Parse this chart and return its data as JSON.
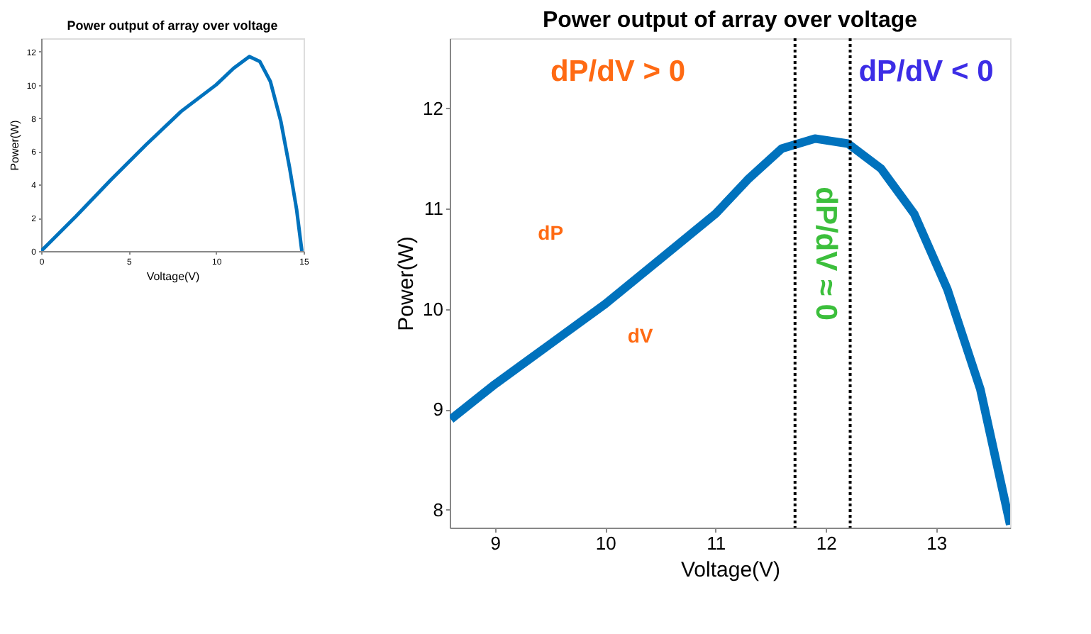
{
  "chart_data": [
    {
      "type": "line",
      "title": "Power output of array over voltage",
      "xlabel": "Voltage(V)",
      "ylabel": "Power(W)",
      "x": [
        0,
        2,
        4,
        6,
        8,
        10,
        11,
        11.9,
        12.5,
        13.1,
        13.7,
        14.2,
        14.6,
        14.9
      ],
      "series": [
        {
          "color": "#0072bd",
          "values": [
            0,
            2.1,
            4.3,
            6.4,
            8.4,
            10,
            11,
            11.7,
            11.4,
            10.2,
            7.8,
            5,
            2.5,
            0
          ]
        }
      ],
      "xlim": [
        0,
        15
      ],
      "ylim": [
        0,
        12.8
      ],
      "xticks": [
        0,
        5,
        10,
        15
      ],
      "yticks": [
        0,
        2,
        4,
        6,
        8,
        10,
        12
      ],
      "grid": false
    },
    {
      "type": "line",
      "title": "Power output of array over voltage",
      "xlabel": "Voltage(V)",
      "ylabel": "Power(W)",
      "x": [
        8.6,
        9,
        9.5,
        10,
        10.5,
        11,
        11.3,
        11.6,
        11.9,
        12.2,
        12.5,
        12.8,
        13.1,
        13.4,
        13.67
      ],
      "series": [
        {
          "color": "#0072bd",
          "values": [
            8.9,
            9.25,
            9.65,
            10.05,
            10.5,
            10.95,
            11.3,
            11.6,
            11.7,
            11.65,
            11.4,
            10.95,
            10.2,
            9.2,
            7.85
          ]
        }
      ],
      "xlim": [
        8.59,
        13.67
      ],
      "ylim": [
        7.82,
        12.7
      ],
      "xticks": [
        9,
        10,
        11,
        12,
        13
      ],
      "yticks": [
        8,
        9,
        10,
        11,
        12
      ],
      "grid": false,
      "ref_lines": [
        {
          "axis": "x",
          "value": 11.72,
          "color": "#000000",
          "line_style": "dotted"
        },
        {
          "axis": "x",
          "value": 12.22,
          "color": "#000000",
          "line_style": "dotted"
        }
      ],
      "annotations": [
        "dP/dV > 0",
        "dP/dV < 0",
        "dP/dV ≈ 0",
        "dP",
        "dV"
      ]
    }
  ]
}
